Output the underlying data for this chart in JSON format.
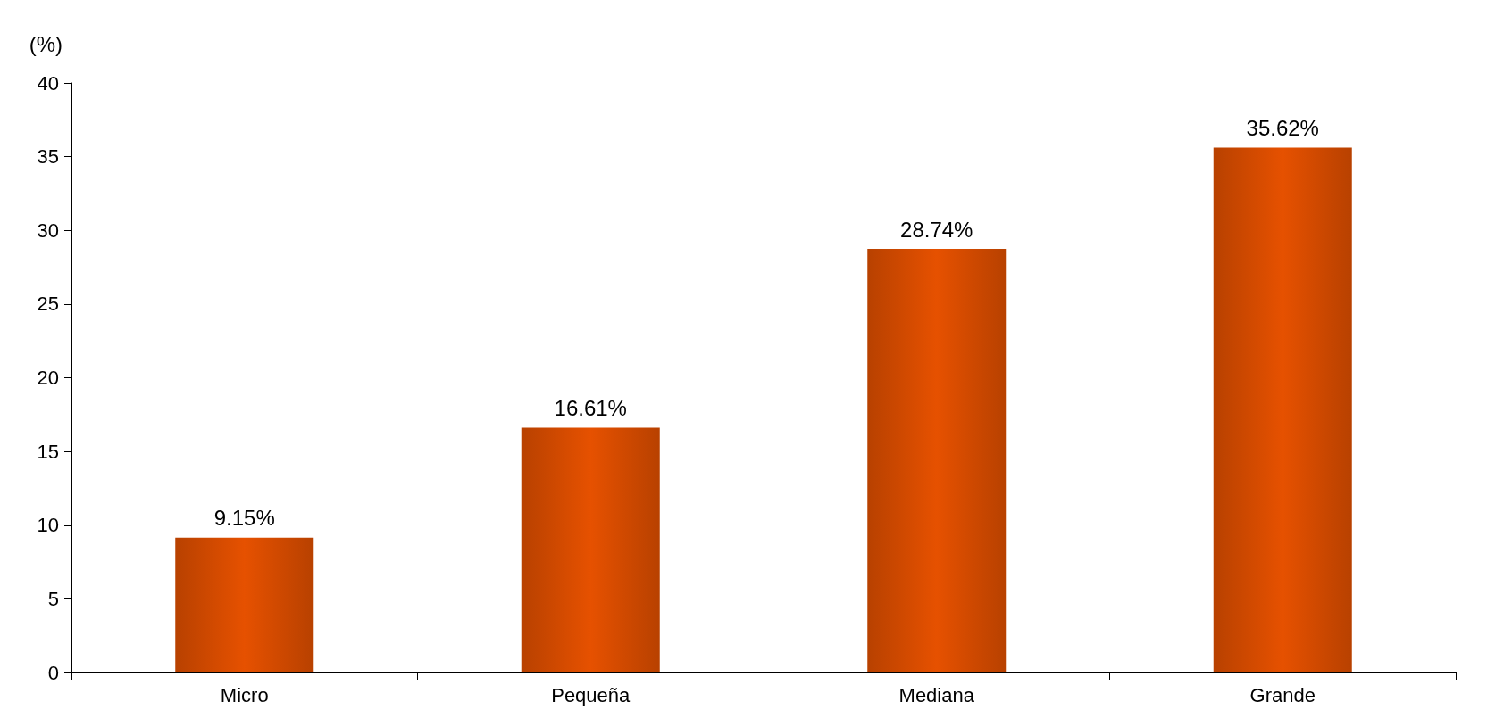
{
  "chart_data": {
    "type": "bar",
    "ylabel": "(%)",
    "categories": [
      "Micro",
      "Pequeña",
      "Mediana",
      "Grande"
    ],
    "values": [
      9.15,
      16.61,
      28.74,
      35.62
    ],
    "value_labels": [
      "9.15%",
      "16.61%",
      "28.74%",
      "35.62%"
    ],
    "color": "#e65100",
    "ylim": [
      0,
      40
    ],
    "yticks": [
      0,
      5,
      10,
      15,
      20,
      25,
      30,
      35,
      40
    ],
    "grid": false
  }
}
